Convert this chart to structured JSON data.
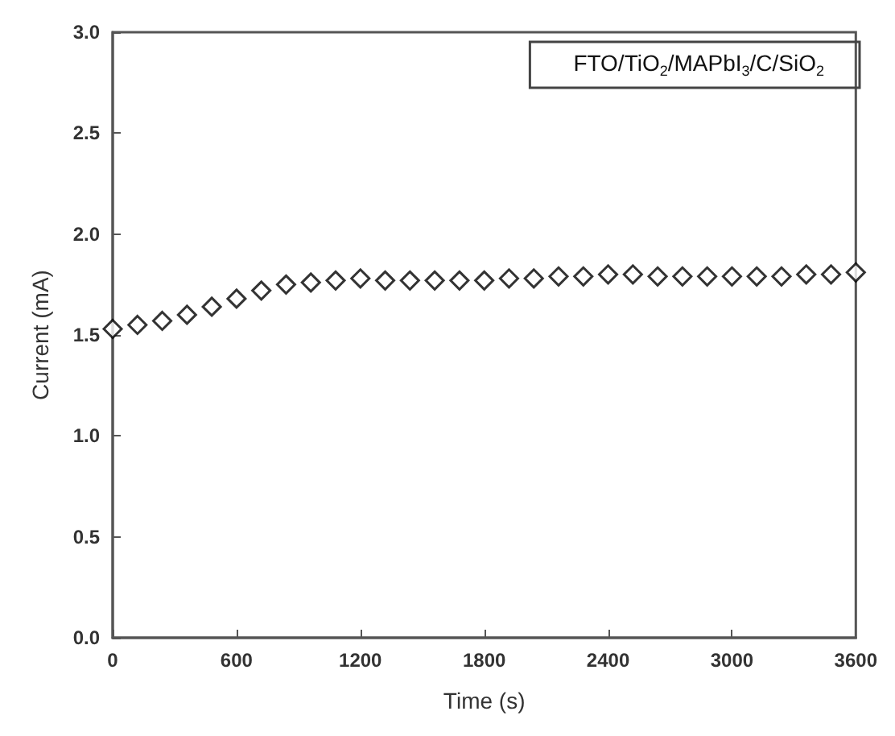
{
  "chart_data": {
    "type": "scatter",
    "xlabel": "Time (s)",
    "ylabel": "Current (mA)",
    "x": [
      0,
      120,
      240,
      360,
      480,
      600,
      720,
      840,
      960,
      1080,
      1200,
      1320,
      1440,
      1560,
      1680,
      1800,
      1920,
      2040,
      2160,
      2280,
      2400,
      2520,
      2640,
      2760,
      2880,
      3000,
      3120,
      3240,
      3360,
      3480,
      3600
    ],
    "series": [
      {
        "name": "FTO/TiO$_{2}$/MAPbI$_{3}$/C/SiO$_{2}$",
        "color": "#000000",
        "values": [
          1.53,
          1.55,
          1.57,
          1.6,
          1.64,
          1.68,
          1.72,
          1.75,
          1.76,
          1.77,
          1.78,
          1.77,
          1.77,
          1.77,
          1.77,
          1.77,
          1.78,
          1.78,
          1.79,
          1.79,
          1.8,
          1.8,
          1.79,
          1.79,
          1.79,
          1.79,
          1.79,
          1.79,
          1.8,
          1.8,
          1.81
        ]
      }
    ],
    "xlim": [
      0,
      3600
    ],
    "xticks": [
      0,
      600,
      1200,
      1800,
      2400,
      3000,
      3600
    ],
    "ylim": [
      0,
      3
    ],
    "yticks": [
      {
        "value": 0,
        "label": "0.0"
      },
      0.5,
      {
        "value": 1,
        "label": "1.0"
      },
      1.5,
      {
        "value": 2,
        "label": "2.0"
      },
      2.5,
      {
        "value": 3,
        "label": "3.0"
      }
    ],
    "grid": false,
    "legend": "top right",
    "marker": "diamond"
  }
}
